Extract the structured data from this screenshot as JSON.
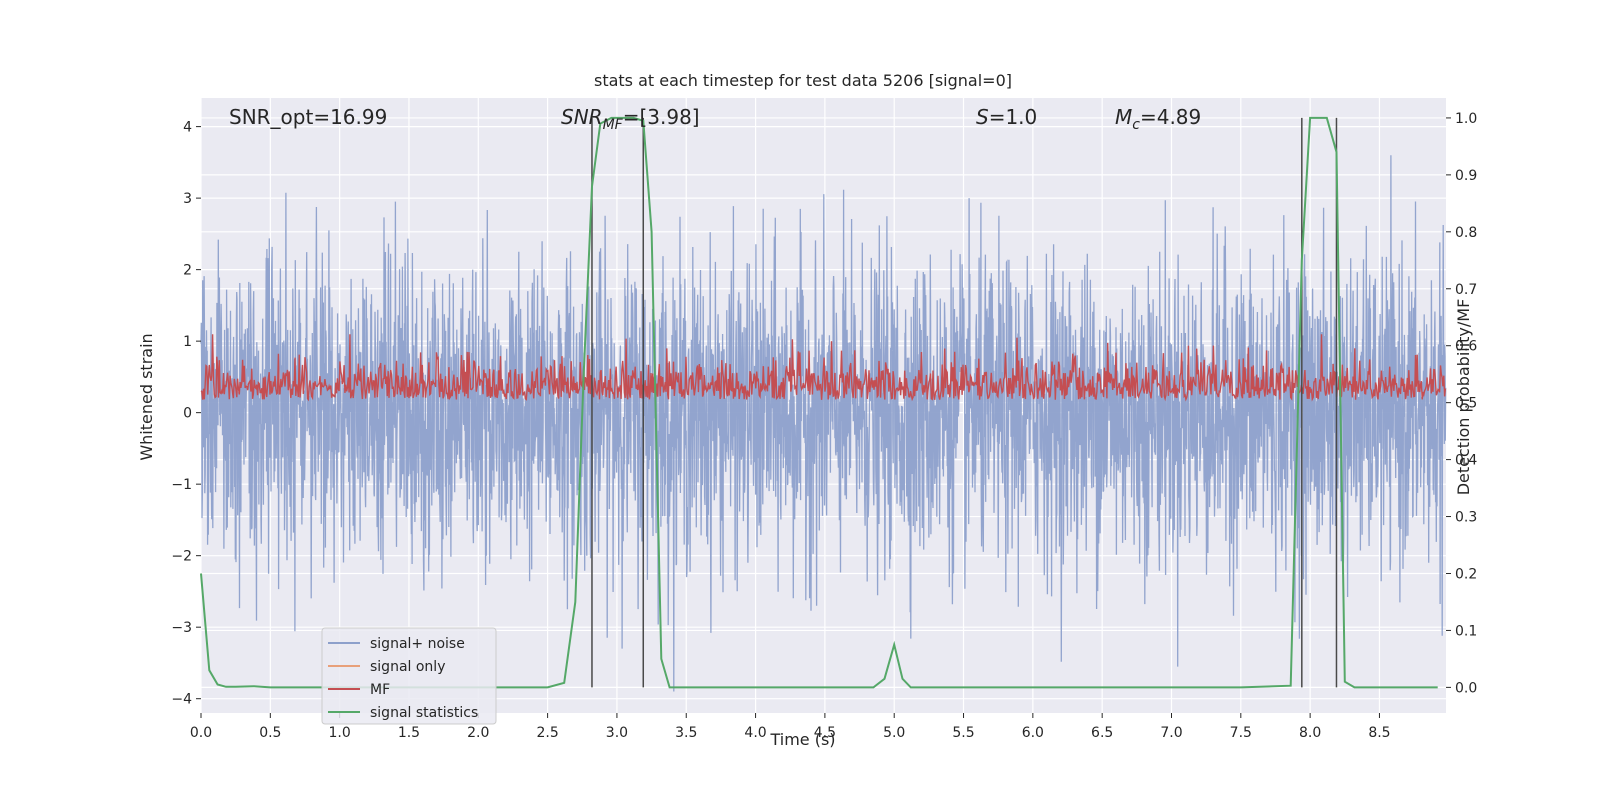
{
  "chart_data": {
    "type": "line",
    "title": "stats at each timestep for test data 5206 [signal=0]",
    "xlabel": "Time (s)",
    "ylabel": "Whitened strain",
    "y2label": "Detection probability/MF",
    "xlim": [
      0.0,
      8.98
    ],
    "ylim": [
      -4.2,
      4.4
    ],
    "y2lim": [
      -0.045,
      1.035
    ],
    "xticks": [
      0.0,
      0.5,
      1.0,
      1.5,
      2.0,
      2.5,
      3.0,
      3.5,
      4.0,
      4.5,
      5.0,
      5.5,
      6.0,
      6.5,
      7.0,
      7.5,
      8.0,
      8.5
    ],
    "yticks": [
      -4,
      -3,
      -2,
      -1,
      0,
      1,
      2,
      3,
      4
    ],
    "y2ticks": [
      0.0,
      0.1,
      0.2,
      0.3,
      0.4,
      0.5,
      0.6,
      0.7,
      0.8,
      0.9,
      1.0
    ],
    "grid": true,
    "legend_position": "lower-left",
    "colors": {
      "noise": "#8da0cb",
      "signal_only": "#e8a07a",
      "mf": "#c44e52",
      "stats": "#55a868",
      "vlines": "#4a4a4a",
      "plot_bg": "#eaeaf2"
    },
    "annotations": {
      "snr_opt": "SNR_opt=16.99",
      "snr_mf_label": "SNR",
      "snr_mf_sub": "MF",
      "snr_mf_value": "=[3.98]",
      "s_label": "S",
      "s_value": "=1.0",
      "mc_label": "M",
      "mc_sub": "c",
      "mc_value": "=4.89"
    },
    "noise_series": {
      "name": "signal+ noise",
      "sample_step": 0.0025,
      "amplitude_envelope": 2.6,
      "description_range": [
        -3.9,
        3.6
      ]
    },
    "signal_only_series": {
      "name": "signal only",
      "values": []
    },
    "mf_series": {
      "name": "MF",
      "axis": "y2",
      "baseline": 0.52,
      "range": [
        0.5,
        0.62
      ]
    },
    "vertical_lines": [
      {
        "x": 2.82,
        "y2_range": [
          0.0,
          1.0
        ]
      },
      {
        "x": 3.19,
        "y2_range": [
          0.0,
          1.0
        ]
      },
      {
        "x": 7.94,
        "y2_range": [
          0.0,
          1.0
        ]
      },
      {
        "x": 8.19,
        "y2_range": [
          0.0,
          1.0
        ]
      }
    ],
    "series": [
      {
        "name": "signal statistics",
        "axis": "y2",
        "x": [
          0.0,
          0.06,
          0.12,
          0.18,
          0.25,
          0.38,
          0.5,
          0.62,
          0.75,
          1.0,
          1.5,
          2.0,
          2.5,
          2.62,
          2.7,
          2.76,
          2.82,
          2.88,
          2.96,
          3.05,
          3.12,
          3.19,
          3.25,
          3.32,
          3.38,
          3.5,
          4.0,
          4.5,
          4.85,
          4.93,
          5.0,
          5.06,
          5.12,
          5.5,
          6.0,
          6.5,
          7.0,
          7.5,
          7.86,
          7.94,
          8.0,
          8.06,
          8.12,
          8.19,
          8.25,
          8.32,
          8.5,
          8.92
        ],
        "y": [
          0.2,
          0.03,
          0.005,
          0.001,
          0.001,
          0.002,
          0.0,
          0.0,
          0.0,
          0.0,
          0.0,
          0.0,
          0.0,
          0.008,
          0.15,
          0.55,
          0.88,
          0.99,
          1.0,
          1.0,
          1.0,
          0.995,
          0.8,
          0.05,
          0.0,
          0.0,
          0.0,
          0.0,
          0.0,
          0.015,
          0.075,
          0.015,
          0.0,
          0.0,
          0.0,
          0.0,
          0.0,
          0.0,
          0.003,
          0.75,
          1.0,
          1.0,
          1.0,
          0.94,
          0.01,
          0.0,
          0.0,
          0.0
        ]
      }
    ],
    "legend": [
      {
        "name": "signal+ noise",
        "key": "noise"
      },
      {
        "name": "signal only",
        "key": "signal_only"
      },
      {
        "name": "MF",
        "key": "mf"
      },
      {
        "name": "signal statistics",
        "key": "stats"
      }
    ]
  }
}
